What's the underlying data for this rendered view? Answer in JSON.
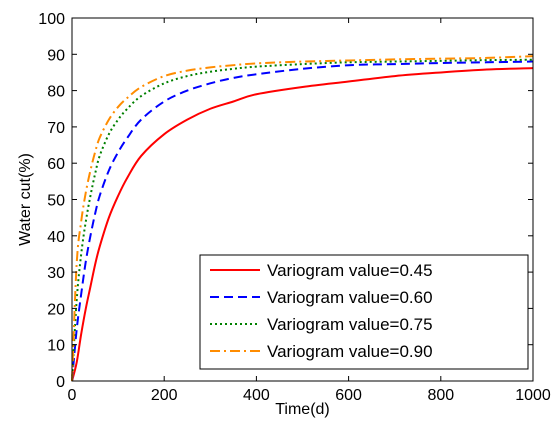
{
  "chart_data": {
    "type": "line",
    "xlabel": "Time(d)",
    "ylabel": "Water cut(%)",
    "xlim": [
      0,
      1000
    ],
    "ylim": [
      0,
      100
    ],
    "xticks": [
      0,
      200,
      400,
      600,
      800,
      1000
    ],
    "yticks": [
      0,
      10,
      20,
      30,
      40,
      50,
      60,
      70,
      80,
      90,
      100
    ],
    "grid": false,
    "legend_position": "bottom-right",
    "x": [
      0,
      10,
      20,
      30,
      40,
      50,
      60,
      80,
      100,
      120,
      150,
      200,
      250,
      300,
      350,
      400,
      500,
      600,
      700,
      800,
      900,
      1000
    ],
    "series": [
      {
        "name": "Variogram value=0.45",
        "color": "#ff0000",
        "style": "solid",
        "values": [
          0,
          5,
          13,
          20,
          26,
          32,
          37,
          45,
          51,
          56,
          62,
          68,
          72,
          75,
          77,
          79,
          81,
          82.5,
          84,
          85,
          85.8,
          86.2
        ]
      },
      {
        "name": "Variogram value=0.60",
        "color": "#0000ff",
        "style": "dashed",
        "values": [
          0,
          14,
          24,
          33,
          40,
          46,
          51,
          58,
          63,
          67,
          72,
          77,
          80,
          82,
          83.5,
          84.5,
          86,
          87,
          87.3,
          87.6,
          87.8,
          88
        ]
      },
      {
        "name": "Variogram value=0.75",
        "color": "#008000",
        "style": "dotted",
        "values": [
          0,
          22,
          35,
          44,
          51,
          57,
          62,
          68,
          72,
          75,
          78.5,
          82,
          84,
          85.2,
          86,
          86.6,
          87.3,
          87.8,
          88,
          88.2,
          88.4,
          88.5
        ]
      },
      {
        "name": "Variogram value=0.90",
        "color": "#ff8c00",
        "style": "dashdot",
        "values": [
          0,
          32,
          44,
          52,
          58,
          63,
          67,
          72,
          75.5,
          78,
          81,
          84,
          85.5,
          86.4,
          87,
          87.5,
          88,
          88.3,
          88.6,
          88.8,
          89,
          89.5
        ]
      }
    ]
  }
}
